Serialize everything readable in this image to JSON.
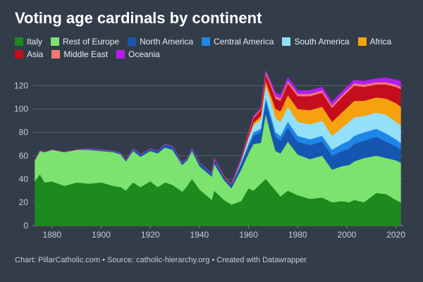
{
  "title": "Voting age cardinals by continent",
  "footer": "Chart: PillarCatholic.com • Source: catholic-hierarchy.org • Created with Datawrapper",
  "colors": {
    "background": "#333d4a",
    "grid": "#56606d",
    "tick_text": "#c5ccd5"
  },
  "chart_data": {
    "type": "area",
    "title": "Voting age cardinals by continent",
    "xlabel": "",
    "ylabel": "",
    "stacked": true,
    "grid": true,
    "legend_position": "top-left",
    "xlim": [
      1872,
      2023
    ],
    "ylim": [
      0,
      130
    ],
    "xticks": [
      1880,
      1900,
      1920,
      1940,
      1960,
      1980,
      2000,
      2020
    ],
    "yticks": [
      0,
      20,
      40,
      60,
      80,
      100,
      120
    ],
    "x": [
      1873,
      1875,
      1877,
      1880,
      1885,
      1890,
      1895,
      1900,
      1905,
      1908,
      1910,
      1913,
      1916,
      1920,
      1923,
      1926,
      1929,
      1933,
      1935,
      1937,
      1940,
      1945,
      1946,
      1950,
      1953,
      1957,
      1960,
      1962,
      1965,
      1967,
      1969,
      1971,
      1973,
      1976,
      1980,
      1985,
      1990,
      1994,
      1998,
      2001,
      2003,
      2007,
      2012,
      2016,
      2020,
      2022
    ],
    "series": [
      {
        "name": "Italy",
        "color": "#1c8a1c",
        "values": [
          38,
          44,
          37,
          38,
          34,
          37,
          36,
          37,
          34,
          33,
          30,
          37,
          33,
          38,
          33,
          37,
          35,
          29,
          34,
          40,
          31,
          22,
          30,
          22,
          18,
          21,
          32,
          30,
          36,
          40,
          35,
          30,
          25,
          30,
          26,
          23,
          24,
          20,
          21,
          20,
          22,
          20,
          28,
          27,
          22,
          20
        ]
      },
      {
        "name": "Rest of Europe",
        "color": "#7be36e",
        "values": [
          18,
          20,
          26,
          27,
          29,
          28,
          29,
          27,
          29,
          28,
          25,
          27,
          26,
          26,
          29,
          30,
          30,
          23,
          22,
          24,
          20,
          20,
          23,
          17,
          14,
          27,
          30,
          40,
          35,
          56,
          44,
          34,
          37,
          42,
          35,
          34,
          36,
          28,
          30,
          32,
          33,
          38,
          32,
          31,
          34,
          34
        ]
      },
      {
        "name": "North America",
        "color": "#1756b0",
        "values": [
          0,
          0,
          0,
          0,
          0,
          0,
          1,
          1,
          1,
          1,
          1,
          2,
          2,
          2,
          2,
          3,
          3,
          2,
          2,
          2,
          3,
          3,
          4,
          3,
          3,
          5,
          6,
          7,
          9,
          10,
          12,
          12,
          11,
          12,
          11,
          12,
          12,
          12,
          13,
          14,
          15,
          15,
          16,
          14,
          12,
          11
        ]
      },
      {
        "name": "Central America",
        "color": "#1e86e8",
        "values": [
          0,
          0,
          0,
          0,
          0,
          0,
          0,
          0,
          0,
          0,
          0,
          0,
          0,
          0,
          0,
          0,
          0,
          0,
          0,
          0,
          0,
          0,
          0,
          0,
          0,
          1,
          2,
          3,
          3,
          4,
          4,
          4,
          4,
          5,
          5,
          5,
          5,
          5,
          6,
          7,
          7,
          7,
          7,
          7,
          6,
          6
        ]
      },
      {
        "name": "South America",
        "color": "#93e0fb",
        "values": [
          0,
          0,
          0,
          0,
          0,
          0,
          0,
          0,
          0,
          0,
          0,
          0,
          0,
          0,
          0,
          0,
          0,
          0,
          0,
          0,
          0,
          0,
          0,
          0,
          0,
          2,
          5,
          6,
          8,
          10,
          12,
          12,
          12,
          13,
          12,
          13,
          13,
          12,
          14,
          16,
          16,
          14,
          14,
          16,
          15,
          15
        ]
      },
      {
        "name": "Africa",
        "color": "#f6a20e",
        "values": [
          0,
          0,
          0,
          0,
          0,
          0,
          0,
          0,
          0,
          0,
          0,
          0,
          0,
          0,
          0,
          0,
          0,
          0,
          0,
          0,
          0,
          0,
          0,
          0,
          0,
          0,
          1,
          2,
          3,
          4,
          5,
          8,
          9,
          10,
          11,
          12,
          12,
          12,
          13,
          14,
          14,
          13,
          13,
          14,
          16,
          16
        ]
      },
      {
        "name": "Asia",
        "color": "#c40e1e",
        "values": [
          0,
          0,
          0,
          0,
          0,
          0,
          0,
          0,
          0,
          0,
          0,
          0,
          0,
          0,
          0,
          0,
          0,
          0,
          0,
          0,
          0,
          0,
          1,
          1,
          1,
          2,
          3,
          4,
          5,
          6,
          8,
          9,
          9,
          10,
          11,
          12,
          12,
          12,
          13,
          13,
          13,
          12,
          11,
          12,
          14,
          15
        ]
      },
      {
        "name": "Middle East",
        "color": "#f07a72",
        "values": [
          0,
          0,
          0,
          0,
          0,
          0,
          0,
          0,
          0,
          0,
          0,
          0,
          0,
          0,
          0,
          0,
          0,
          0,
          0,
          0,
          0,
          0,
          0,
          0,
          0,
          0,
          1,
          1,
          1,
          2,
          2,
          2,
          2,
          2,
          2,
          2,
          2,
          2,
          2,
          2,
          2,
          2,
          2,
          2,
          2,
          2
        ]
      },
      {
        "name": "Oceania",
        "color": "#b41ef0",
        "values": [
          0,
          0,
          0,
          0,
          0,
          0,
          0,
          0,
          0,
          0,
          0,
          0,
          0,
          0,
          0,
          0,
          0,
          0,
          0,
          0,
          0,
          0,
          0,
          0,
          0,
          0,
          0,
          1,
          1,
          1,
          2,
          3,
          3,
          3,
          3,
          3,
          3,
          3,
          3,
          3,
          3,
          3,
          3,
          4,
          4,
          5
        ]
      }
    ]
  }
}
